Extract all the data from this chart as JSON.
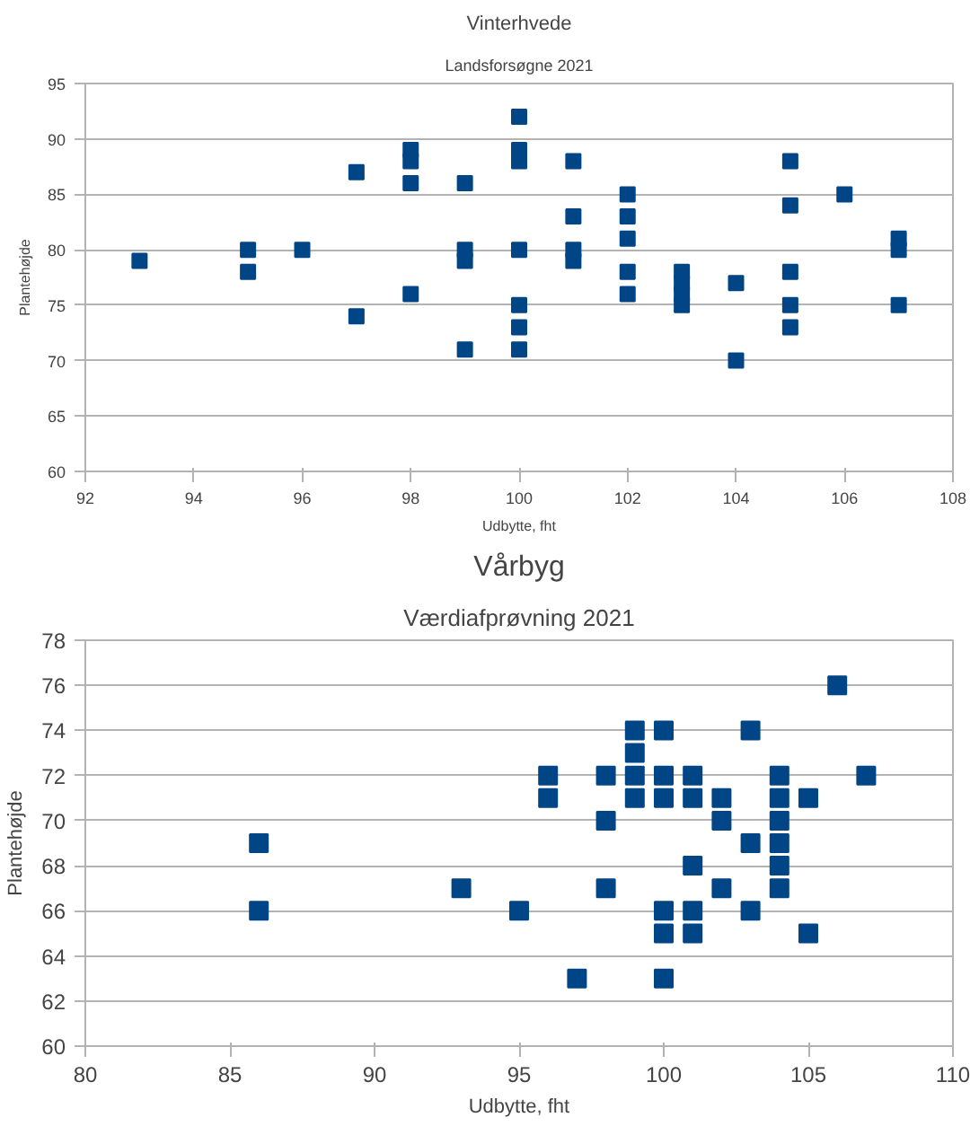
{
  "chart_data": [
    {
      "type": "scatter",
      "title": "Vinterhvede",
      "subtitle": "Landsforsøgne 2021",
      "xlabel": "Udbytte, fht",
      "ylabel": "Plantehøjde",
      "marker": "square",
      "grid": "y",
      "xlim": [
        92,
        108
      ],
      "xticks": [
        92,
        94,
        96,
        98,
        100,
        102,
        104,
        106,
        108
      ],
      "ylim": [
        60,
        95
      ],
      "yticks": [
        60,
        65,
        70,
        75,
        80,
        85,
        90,
        95
      ],
      "series": [
        {
          "color": "#004586",
          "x": [
            93,
            95,
            95,
            96,
            97,
            97,
            98,
            98,
            98,
            98,
            99,
            99,
            99,
            99,
            100,
            100,
            100,
            100,
            100,
            100,
            100,
            101,
            101,
            101,
            101,
            102,
            102,
            102,
            102,
            102,
            103,
            103,
            103,
            103,
            104,
            104,
            105,
            105,
            105,
            105,
            105,
            106,
            107,
            107,
            107
          ],
          "values": [
            79,
            80,
            78,
            80,
            87,
            74,
            89,
            88,
            86,
            76,
            86,
            80,
            79,
            71,
            92,
            89,
            88,
            80,
            75,
            73,
            71,
            88,
            83,
            80,
            79,
            85,
            83,
            81,
            78,
            76,
            78,
            77,
            76,
            75,
            77,
            70,
            88,
            84,
            78,
            75,
            73,
            85,
            81,
            80,
            75
          ]
        }
      ]
    },
    {
      "type": "scatter",
      "title": "Vårbyg",
      "subtitle": "Værdiafprøvning 2021",
      "xlabel": "Udbytte, fht",
      "ylabel": "Plantehøjde",
      "marker": "square",
      "grid": "y",
      "xlim": [
        80,
        110
      ],
      "xticks": [
        80,
        85,
        90,
        95,
        100,
        105,
        110
      ],
      "ylim": [
        60,
        78
      ],
      "yticks": [
        60,
        62,
        64,
        66,
        68,
        70,
        72,
        74,
        76,
        78
      ],
      "series": [
        {
          "color": "#004586",
          "x": [
            86,
            86,
            93,
            95,
            96,
            96,
            97,
            98,
            98,
            98,
            99,
            99,
            99,
            99,
            100,
            100,
            100,
            100,
            100,
            100,
            101,
            101,
            101,
            101,
            101,
            102,
            102,
            102,
            103,
            103,
            103,
            104,
            104,
            104,
            104,
            104,
            104,
            105,
            105,
            106,
            107
          ],
          "values": [
            69,
            66,
            67,
            66,
            72,
            71,
            63,
            72,
            70,
            67,
            74,
            73,
            72,
            71,
            74,
            72,
            71,
            66,
            65,
            63,
            72,
            71,
            68,
            66,
            65,
            71,
            70,
            67,
            74,
            69,
            66,
            72,
            71,
            70,
            69,
            68,
            67,
            71,
            65,
            76,
            72
          ]
        }
      ]
    }
  ]
}
